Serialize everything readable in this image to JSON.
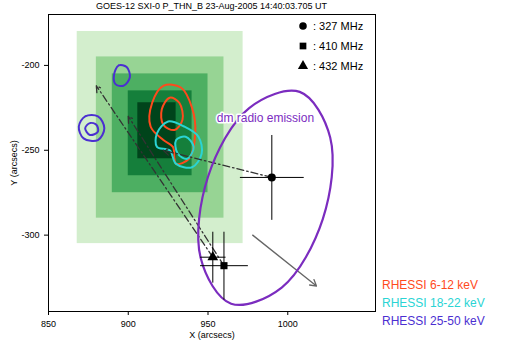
{
  "chart_data": {
    "type": "scatter",
    "title": "GOES-12 SXI-0 P_THN_B 23-Aug-2005 14:40:03.705 UT",
    "x_label": "X (arcsecs)",
    "y_label": "Y (arcsecs)",
    "xlim": [
      850,
      1055
    ],
    "ylim": [
      -345,
      -170
    ],
    "xticks": [
      850,
      900,
      950,
      1000
    ],
    "yticks": [
      -300,
      -250,
      -200
    ],
    "legend": "top-right",
    "image": [
      {
        "x1": 868,
        "x2": 972,
        "y1": -305,
        "y2": -180,
        "value": 1
      },
      {
        "x1": 880,
        "x2": 960,
        "y1": -290,
        "y2": -195,
        "value": 2
      },
      {
        "x1": 890,
        "x2": 950,
        "y1": -275,
        "y2": -205,
        "value": 3
      },
      {
        "x1": 900,
        "x2": 940,
        "y1": -265,
        "y2": -215,
        "value": 4
      },
      {
        "x1": 906,
        "x2": 930,
        "y1": -255,
        "y2": -222,
        "value": 5
      }
    ],
    "series": [
      {
        "name": ": 327 MHz",
        "marker": "circle",
        "color": "#000000",
        "x": [
          990
        ],
        "y": [
          -266
        ],
        "x_err": [
          20
        ],
        "y_err": [
          25
        ]
      },
      {
        "name": ": 410 MHz",
        "marker": "square",
        "color": "#000000",
        "x": [
          960
        ],
        "y": [
          -318
        ],
        "x_err": [
          15
        ],
        "y_err": [
          20
        ]
      },
      {
        "name": ": 432 MHz",
        "marker": "triangle",
        "color": "#000000",
        "x": [
          953
        ],
        "y": [
          -313
        ],
        "x_err": [
          8
        ],
        "y_err": [
          15
        ]
      }
    ],
    "contours": [
      {
        "name": "RHESSI 6-12 keV",
        "color": "#ff4a1c",
        "levels": [
          [
            [
              915,
              -222
            ],
            [
              922,
              -212
            ],
            [
              933,
              -213
            ],
            [
              940,
              -225
            ],
            [
              942,
              -240
            ],
            [
              938,
              -255
            ],
            [
              930,
              -258
            ],
            [
              928,
              -248
            ],
            [
              922,
              -244
            ],
            [
              914,
              -236
            ]
          ],
          [
            [
              921,
              -226
            ],
            [
              926,
              -219
            ],
            [
              932,
              -222
            ],
            [
              934,
              -232
            ],
            [
              929,
              -238
            ],
            [
              922,
              -235
            ]
          ]
        ]
      },
      {
        "name": "RHESSI 18-22 keV",
        "color": "#2ad4d4",
        "levels": [
          [
            [
              918,
              -240
            ],
            [
              925,
              -233
            ],
            [
              935,
              -236
            ],
            [
              944,
              -242
            ],
            [
              946,
              -252
            ],
            [
              940,
              -260
            ],
            [
              930,
              -258
            ],
            [
              926,
              -250
            ],
            [
              918,
              -248
            ]
          ],
          [
            [
              930,
              -244
            ],
            [
              936,
              -242
            ],
            [
              941,
              -248
            ],
            [
              937,
              -255
            ],
            [
              931,
              -252
            ]
          ]
        ]
      },
      {
        "name": "RHESSI 25-50 keV",
        "color": "#4b2fd1",
        "levels": [
          [
            [
              869,
              -236
            ],
            [
              873,
              -230
            ],
            [
              881,
              -230
            ],
            [
              885,
              -237
            ],
            [
              881,
              -244
            ],
            [
              872,
              -243
            ]
          ],
          [
            [
              873,
              -237
            ],
            [
              876,
              -234
            ],
            [
              880,
              -235
            ],
            [
              881,
              -239
            ],
            [
              876,
              -241
            ]
          ],
          [
            [
              891,
              -206
            ],
            [
              894,
              -200
            ],
            [
              899,
              -201
            ],
            [
              901,
              -207
            ],
            [
              897,
              -212
            ],
            [
              892,
              -211
            ]
          ]
        ]
      }
    ],
    "region": {
      "label": "dm radio emission",
      "color": "#7b2cbf",
      "points": [
        [
          1007.5,
          -215.6
        ],
        [
          1026.6,
          -242.5
        ],
        [
          1022,
          -290.4
        ],
        [
          996.2,
          -330.9
        ],
        [
          964.5,
          -340.4
        ],
        [
          945.4,
          -313.5
        ],
        [
          950,
          -265.6
        ],
        [
          975.8,
          -225.1
        ]
      ]
    },
    "arrows": [
      {
        "from": [
          990,
          -266
        ],
        "to": [
          922,
          -250
        ],
        "line_style": "dashdot",
        "color": "#333333"
      },
      {
        "from": [
          953,
          -313
        ],
        "to": [
          880,
          -212
        ],
        "line_style": "dashdot",
        "color": "#333333"
      },
      {
        "from": [
          960,
          -318
        ],
        "to": [
          900,
          -230
        ],
        "line_style": "dashdot",
        "color": "#333333"
      },
      {
        "from": [
          978,
          -300
        ],
        "to": [
          1018,
          -330
        ],
        "line_style": "solid",
        "color": "#666666"
      }
    ]
  }
}
